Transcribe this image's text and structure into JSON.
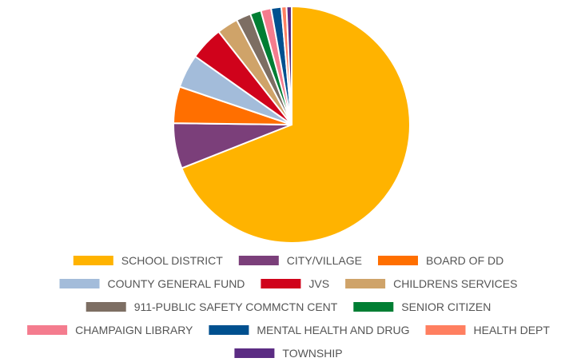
{
  "chart_data": {
    "type": "pie",
    "title": "",
    "legend_position": "bottom",
    "unit": "percent",
    "slices": [
      {
        "label": "SCHOOL DISTRICT",
        "value": 69.0,
        "color": "#FFB300"
      },
      {
        "label": "CITY/VILLAGE",
        "value": 6.2,
        "color": "#7B3F7A"
      },
      {
        "label": "BOARD OF DD",
        "value": 5.0,
        "color": "#FF6F00"
      },
      {
        "label": "COUNTY GENERAL FUND",
        "value": 4.6,
        "color": "#A3BCDA"
      },
      {
        "label": "JVS",
        "value": 4.6,
        "color": "#D0021B"
      },
      {
        "label": "CHILDRENS SERVICES",
        "value": 2.9,
        "color": "#CFA369"
      },
      {
        "label": "911-PUBLIC SAFETY COMMCTN CENT",
        "value": 2.0,
        "color": "#7D6E63"
      },
      {
        "label": "SENIOR CITIZEN",
        "value": 1.5,
        "color": "#007E33"
      },
      {
        "label": "CHAMPAIGN LIBRARY",
        "value": 1.4,
        "color": "#F47C8E"
      },
      {
        "label": "MENTAL HEALTH AND DRUG",
        "value": 1.4,
        "color": "#00508F"
      },
      {
        "label": "HEALTH DEPT",
        "value": 0.7,
        "color": "#FF7F60"
      },
      {
        "label": "TOWNSHIP",
        "value": 0.7,
        "color": "#5B2C83"
      }
    ]
  }
}
